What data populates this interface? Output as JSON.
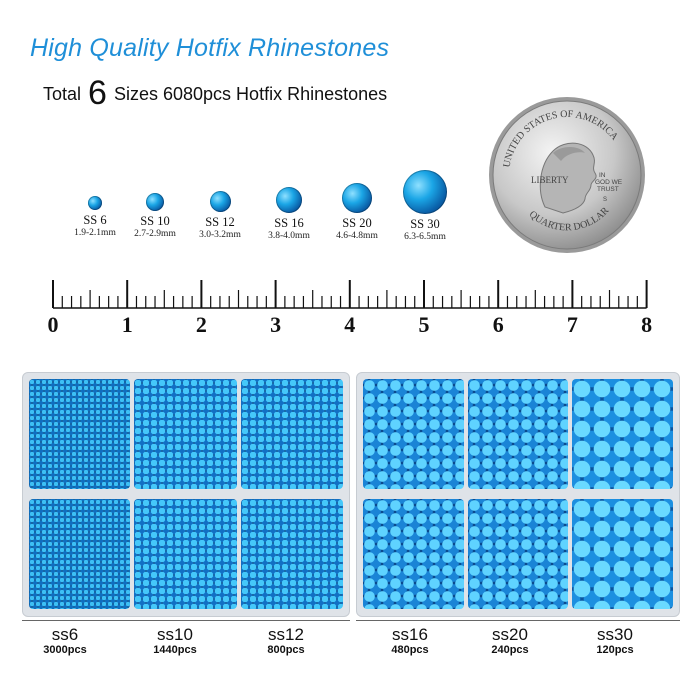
{
  "header": {
    "title": "High Quality Hotfix Rhinestones",
    "subtitle_prefix": "Total",
    "subtitle_number": "6",
    "subtitle_suffix": "Sizes 6080pcs Hotfix Rhinestones"
  },
  "coin": {
    "top_text": "UNITED STATES OF AMERICA",
    "motto": "IN GOD WE TRUST",
    "liberty": "LIBERTY",
    "mint": "S",
    "bottom_text": "QUARTER DOLLAR"
  },
  "sizes": [
    {
      "name": "SS 6",
      "range": "1.9-2.1mm"
    },
    {
      "name": "SS 10",
      "range": "2.7-2.9mm"
    },
    {
      "name": "SS 12",
      "range": "3.0-3.2mm"
    },
    {
      "name": "SS 16",
      "range": "3.8-4.0mm"
    },
    {
      "name": "SS 20",
      "range": "4.6-4.8mm"
    },
    {
      "name": "SS 30",
      "range": "6.3-6.5mm"
    }
  ],
  "ruler": {
    "numbers": [
      "0",
      "1",
      "2",
      "3",
      "4",
      "5",
      "6",
      "7",
      "8"
    ]
  },
  "compartments": [
    {
      "size": "ss6",
      "count": "3000pcs"
    },
    {
      "size": "ss10",
      "count": "1440pcs"
    },
    {
      "size": "ss12",
      "count": "800pcs"
    },
    {
      "size": "ss16",
      "count": "480pcs"
    },
    {
      "size": "ss20",
      "count": "240pcs"
    },
    {
      "size": "ss30",
      "count": "120pcs"
    }
  ],
  "colors": {
    "title": "#1f8fd8",
    "gem_dark": "#0a3d7a",
    "gem_light": "#3dc0f5",
    "tray": "#dfe3e8"
  }
}
